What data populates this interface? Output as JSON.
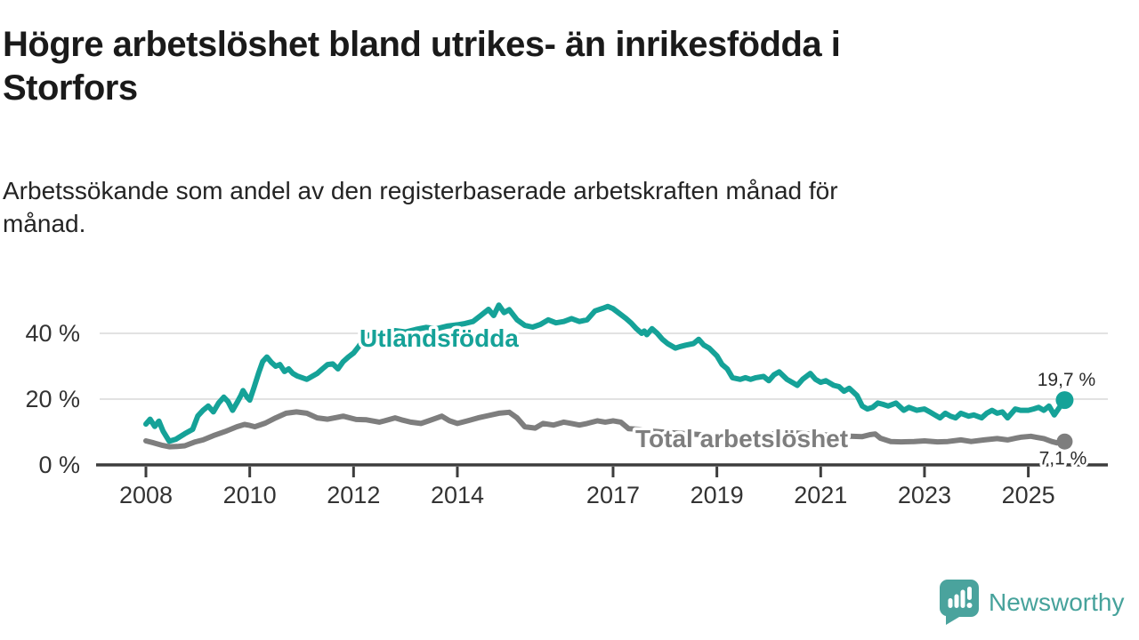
{
  "header": {
    "title_lines": [
      "Högre arbetslöshet bland utrikes- än inrikesfödda i",
      "Storfors"
    ],
    "subtitle_lines": [
      "Arbetssökande som andel av den registerbaserade arbetskraften månad för",
      "månad."
    ]
  },
  "chart_data": {
    "type": "line",
    "title": "Högre arbetslöshet bland utrikes- än inrikesfödda i Storfors",
    "subtitle": "Arbetssökande som andel av den registerbaserade arbetskraften månad för månad.",
    "xlabel": "",
    "ylabel": "",
    "grid": "horizontal",
    "legend_position": "inline-labels",
    "xlim": [
      2007.9,
      2026.4
    ],
    "ylim": [
      0,
      50
    ],
    "x_axis": {
      "ticks": [
        {
          "v": 2008,
          "label": "2008"
        },
        {
          "v": 2010,
          "label": "2010"
        },
        {
          "v": 2012,
          "label": "2012"
        },
        {
          "v": 2014,
          "label": "2014"
        },
        {
          "v": 2017,
          "label": "2017"
        },
        {
          "v": 2019,
          "label": "2019"
        },
        {
          "v": 2021,
          "label": "2021"
        },
        {
          "v": 2023,
          "label": "2023"
        },
        {
          "v": 2025,
          "label": "2025"
        }
      ]
    },
    "y_axis": {
      "ticks": [
        {
          "v": 0,
          "label": "0 %"
        },
        {
          "v": 20,
          "label": "20 %"
        },
        {
          "v": 40,
          "label": "40 %"
        }
      ]
    },
    "series": [
      {
        "name": "Utlandsfödda",
        "color": "#15a298",
        "end_label": "19,7 %",
        "end_value": 19.7,
        "points": [
          [
            2008.0,
            12.4
          ],
          [
            2008.08,
            13.9
          ],
          [
            2008.17,
            11.7
          ],
          [
            2008.25,
            13.3
          ],
          [
            2008.33,
            10.3
          ],
          [
            2008.45,
            7.2
          ],
          [
            2008.58,
            7.8
          ],
          [
            2008.75,
            9.5
          ],
          [
            2008.9,
            10.8
          ],
          [
            2009.0,
            14.9
          ],
          [
            2009.1,
            16.6
          ],
          [
            2009.2,
            17.9
          ],
          [
            2009.3,
            16.1
          ],
          [
            2009.4,
            18.8
          ],
          [
            2009.5,
            20.6
          ],
          [
            2009.58,
            19.3
          ],
          [
            2009.67,
            16.6
          ],
          [
            2009.75,
            18.8
          ],
          [
            2009.83,
            21.1
          ],
          [
            2009.87,
            22.6
          ],
          [
            2009.95,
            20.6
          ],
          [
            2010.0,
            19.7
          ],
          [
            2010.08,
            23.4
          ],
          [
            2010.17,
            27.9
          ],
          [
            2010.25,
            31.4
          ],
          [
            2010.33,
            32.8
          ],
          [
            2010.42,
            31.1
          ],
          [
            2010.5,
            30.0
          ],
          [
            2010.58,
            30.5
          ],
          [
            2010.67,
            28.4
          ],
          [
            2010.75,
            29.2
          ],
          [
            2010.83,
            27.8
          ],
          [
            2010.92,
            27.0
          ],
          [
            2011.1,
            26.0
          ],
          [
            2011.3,
            27.8
          ],
          [
            2011.4,
            29.2
          ],
          [
            2011.5,
            30.5
          ],
          [
            2011.6,
            30.7
          ],
          [
            2011.7,
            29.2
          ],
          [
            2011.8,
            31.4
          ],
          [
            2011.9,
            32.8
          ],
          [
            2012.0,
            34.0
          ],
          [
            2012.1,
            36.0
          ],
          [
            2012.2,
            38.6
          ],
          [
            2012.3,
            39.5
          ],
          [
            2012.45,
            40.3
          ],
          [
            2012.6,
            40.0
          ],
          [
            2012.8,
            40.8
          ],
          [
            2013.0,
            40.4
          ],
          [
            2013.2,
            41.2
          ],
          [
            2013.4,
            41.8
          ],
          [
            2013.6,
            41.4
          ],
          [
            2013.8,
            42.2
          ],
          [
            2014.0,
            42.6
          ],
          [
            2014.15,
            43.0
          ],
          [
            2014.3,
            43.6
          ],
          [
            2014.45,
            45.4
          ],
          [
            2014.6,
            47.3
          ],
          [
            2014.7,
            45.4
          ],
          [
            2014.8,
            48.6
          ],
          [
            2014.9,
            46.3
          ],
          [
            2015.0,
            47.2
          ],
          [
            2015.15,
            44.1
          ],
          [
            2015.3,
            42.4
          ],
          [
            2015.45,
            41.9
          ],
          [
            2015.6,
            42.7
          ],
          [
            2015.75,
            44.1
          ],
          [
            2015.9,
            43.2
          ],
          [
            2016.05,
            43.6
          ],
          [
            2016.2,
            44.5
          ],
          [
            2016.35,
            43.6
          ],
          [
            2016.5,
            44.1
          ],
          [
            2016.65,
            46.8
          ],
          [
            2016.8,
            47.6
          ],
          [
            2016.9,
            48.2
          ],
          [
            2017.0,
            47.5
          ],
          [
            2017.1,
            46.3
          ],
          [
            2017.25,
            44.5
          ],
          [
            2017.35,
            43.1
          ],
          [
            2017.45,
            41.4
          ],
          [
            2017.55,
            40.0
          ],
          [
            2017.6,
            40.7
          ],
          [
            2017.65,
            39.6
          ],
          [
            2017.75,
            41.4
          ],
          [
            2017.85,
            40.0
          ],
          [
            2017.95,
            38.2
          ],
          [
            2018.05,
            36.9
          ],
          [
            2018.2,
            35.5
          ],
          [
            2018.3,
            36.0
          ],
          [
            2018.4,
            36.4
          ],
          [
            2018.55,
            36.9
          ],
          [
            2018.65,
            38.2
          ],
          [
            2018.75,
            36.4
          ],
          [
            2018.85,
            35.5
          ],
          [
            2019.0,
            33.2
          ],
          [
            2019.1,
            30.5
          ],
          [
            2019.2,
            29.2
          ],
          [
            2019.3,
            26.5
          ],
          [
            2019.45,
            26.0
          ],
          [
            2019.55,
            26.5
          ],
          [
            2019.65,
            26.0
          ],
          [
            2019.75,
            26.5
          ],
          [
            2019.9,
            26.9
          ],
          [
            2020.0,
            25.6
          ],
          [
            2020.1,
            27.4
          ],
          [
            2020.2,
            28.3
          ],
          [
            2020.35,
            26.0
          ],
          [
            2020.45,
            25.1
          ],
          [
            2020.55,
            24.2
          ],
          [
            2020.65,
            26.0
          ],
          [
            2020.8,
            27.8
          ],
          [
            2020.9,
            26.0
          ],
          [
            2021.0,
            25.1
          ],
          [
            2021.1,
            25.6
          ],
          [
            2021.25,
            24.2
          ],
          [
            2021.35,
            23.8
          ],
          [
            2021.45,
            22.4
          ],
          [
            2021.55,
            23.3
          ],
          [
            2021.7,
            21.1
          ],
          [
            2021.8,
            17.9
          ],
          [
            2021.9,
            17.0
          ],
          [
            2022.0,
            17.5
          ],
          [
            2022.1,
            18.8
          ],
          [
            2022.2,
            18.4
          ],
          [
            2022.3,
            17.9
          ],
          [
            2022.45,
            18.8
          ],
          [
            2022.6,
            16.6
          ],
          [
            2022.7,
            17.5
          ],
          [
            2022.85,
            16.6
          ],
          [
            2023.0,
            17.0
          ],
          [
            2023.1,
            16.1
          ],
          [
            2023.2,
            15.2
          ],
          [
            2023.3,
            14.3
          ],
          [
            2023.4,
            15.7
          ],
          [
            2023.5,
            14.8
          ],
          [
            2023.6,
            14.3
          ],
          [
            2023.7,
            15.7
          ],
          [
            2023.85,
            14.8
          ],
          [
            2023.95,
            15.2
          ],
          [
            2024.1,
            14.3
          ],
          [
            2024.2,
            15.7
          ],
          [
            2024.3,
            16.6
          ],
          [
            2024.4,
            15.7
          ],
          [
            2024.5,
            16.1
          ],
          [
            2024.6,
            14.3
          ],
          [
            2024.75,
            17.0
          ],
          [
            2024.85,
            16.6
          ],
          [
            2025.0,
            16.6
          ],
          [
            2025.1,
            17.0
          ],
          [
            2025.2,
            17.5
          ],
          [
            2025.3,
            16.6
          ],
          [
            2025.4,
            17.9
          ],
          [
            2025.5,
            15.2
          ],
          [
            2025.6,
            17.5
          ],
          [
            2025.7,
            19.7
          ]
        ]
      },
      {
        "name": "Total arbetslöshet",
        "color": "#7e7e7e",
        "end_label": "7,1 %",
        "end_value": 7.1,
        "points": [
          [
            2008.0,
            7.3
          ],
          [
            2008.15,
            6.7
          ],
          [
            2008.3,
            6.0
          ],
          [
            2008.45,
            5.5
          ],
          [
            2008.6,
            5.6
          ],
          [
            2008.75,
            5.8
          ],
          [
            2008.95,
            7.0
          ],
          [
            2009.1,
            7.6
          ],
          [
            2009.3,
            8.9
          ],
          [
            2009.55,
            10.3
          ],
          [
            2009.75,
            11.6
          ],
          [
            2009.9,
            12.3
          ],
          [
            2010.0,
            12.0
          ],
          [
            2010.1,
            11.6
          ],
          [
            2010.3,
            12.7
          ],
          [
            2010.5,
            14.3
          ],
          [
            2010.7,
            15.7
          ],
          [
            2010.9,
            16.1
          ],
          [
            2011.1,
            15.7
          ],
          [
            2011.3,
            14.3
          ],
          [
            2011.5,
            13.9
          ],
          [
            2011.8,
            14.8
          ],
          [
            2012.05,
            13.8
          ],
          [
            2012.25,
            13.7
          ],
          [
            2012.5,
            13.0
          ],
          [
            2012.6,
            13.4
          ],
          [
            2012.8,
            14.3
          ],
          [
            2012.95,
            13.6
          ],
          [
            2013.1,
            13.0
          ],
          [
            2013.3,
            12.6
          ],
          [
            2013.45,
            13.4
          ],
          [
            2013.7,
            14.8
          ],
          [
            2013.85,
            13.4
          ],
          [
            2014.0,
            12.6
          ],
          [
            2014.2,
            13.4
          ],
          [
            2014.4,
            14.3
          ],
          [
            2014.6,
            15.0
          ],
          [
            2014.8,
            15.7
          ],
          [
            2015.0,
            16.0
          ],
          [
            2015.15,
            14.3
          ],
          [
            2015.3,
            11.6
          ],
          [
            2015.5,
            11.2
          ],
          [
            2015.65,
            12.6
          ],
          [
            2015.85,
            12.1
          ],
          [
            2016.05,
            13.0
          ],
          [
            2016.2,
            12.6
          ],
          [
            2016.35,
            12.1
          ],
          [
            2016.5,
            12.6
          ],
          [
            2016.7,
            13.4
          ],
          [
            2016.85,
            13.0
          ],
          [
            2017.0,
            13.4
          ],
          [
            2017.15,
            13.0
          ],
          [
            2017.3,
            11.0
          ],
          [
            2017.5,
            10.8
          ],
          [
            2017.8,
            10.2
          ],
          [
            2018.1,
            9.8
          ],
          [
            2018.5,
            9.4
          ],
          [
            2018.9,
            9.0
          ],
          [
            2019.3,
            8.8
          ],
          [
            2019.7,
            8.6
          ],
          [
            2020.0,
            9.2
          ],
          [
            2020.3,
            10.0
          ],
          [
            2020.6,
            9.6
          ],
          [
            2021.0,
            9.2
          ],
          [
            2021.4,
            8.8
          ],
          [
            2021.8,
            8.6
          ],
          [
            2021.95,
            9.2
          ],
          [
            2022.05,
            9.4
          ],
          [
            2022.15,
            8.1
          ],
          [
            2022.25,
            7.6
          ],
          [
            2022.35,
            7.1
          ],
          [
            2022.55,
            7.0
          ],
          [
            2022.8,
            7.1
          ],
          [
            2023.0,
            7.3
          ],
          [
            2023.25,
            7.0
          ],
          [
            2023.45,
            7.1
          ],
          [
            2023.7,
            7.6
          ],
          [
            2023.9,
            7.1
          ],
          [
            2024.15,
            7.6
          ],
          [
            2024.4,
            8.0
          ],
          [
            2024.6,
            7.6
          ],
          [
            2024.85,
            8.4
          ],
          [
            2025.05,
            8.7
          ],
          [
            2025.15,
            8.4
          ],
          [
            2025.3,
            8.0
          ],
          [
            2025.45,
            7.1
          ],
          [
            2025.55,
            6.7
          ],
          [
            2025.7,
            7.1
          ]
        ]
      }
    ]
  },
  "footer": {
    "brand": "Newsworthy",
    "brand_color": "#46a29b",
    "logo_icon": "speech-bubble-bar-chart-icon"
  }
}
